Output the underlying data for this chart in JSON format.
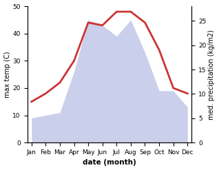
{
  "months": [
    "Jan",
    "Feb",
    "Mar",
    "Apr",
    "May",
    "Jun",
    "Jul",
    "Aug",
    "Sep",
    "Oct",
    "Nov",
    "Dec"
  ],
  "x": [
    0,
    1,
    2,
    3,
    4,
    5,
    6,
    7,
    8,
    9,
    10,
    11
  ],
  "temperature": [
    15,
    18,
    22,
    30,
    44,
    43,
    48,
    48,
    44,
    34,
    20,
    18
  ],
  "precipitation_mm": [
    9,
    10,
    11,
    26,
    45,
    43,
    39,
    45,
    33,
    19,
    19,
    13
  ],
  "temp_color": "#cc3333",
  "precip_fill_color": "#c5cae9",
  "temp_ylim": [
    0,
    50
  ],
  "precip_ylim": [
    0,
    28
  ],
  "temp_yticks": [
    0,
    10,
    20,
    30,
    40,
    50
  ],
  "precip_yticks": [
    0,
    5,
    10,
    15,
    20,
    25
  ],
  "xlabel": "date (month)",
  "ylabel_left": "max temp (C)",
  "ylabel_right": "med. precipitation (kg/m2)",
  "temp_linewidth": 2.0,
  "label_fontsize": 7,
  "tick_fontsize": 6.5,
  "xlabel_fontsize": 7.5,
  "bg_color": "#ffffff"
}
